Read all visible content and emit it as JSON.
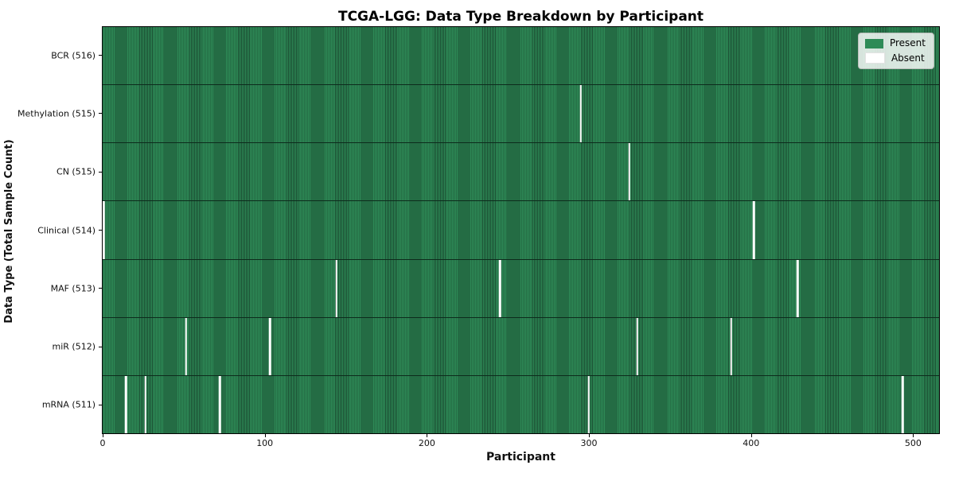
{
  "chart_data": {
    "type": "heatmap",
    "title": "TCGA-LGG: Data Type Breakdown by Participant",
    "xlabel": "Participant",
    "ylabel": "Data Type (Total Sample Count)",
    "x_ticks": [
      0,
      100,
      200,
      300,
      400,
      500
    ],
    "x_domain": [
      0,
      517
    ],
    "n_participants": 516,
    "grid": false,
    "legend_position": "upper right",
    "legend": [
      {
        "label": "Present",
        "color": "#2e8b57"
      },
      {
        "label": "Absent",
        "color": "#ffffff"
      }
    ],
    "colors": {
      "present": "#2e8b57",
      "present_edge": "#1b4d32",
      "absent": "#ffffff"
    },
    "rows": [
      {
        "label": "BCR (516)",
        "total": 516,
        "absent_participants": []
      },
      {
        "label": "Methylation (515)",
        "total": 515,
        "absent_participants": [
          295
        ]
      },
      {
        "label": "CN (515)",
        "total": 515,
        "absent_participants": [
          325
        ]
      },
      {
        "label": "Clinical (514)",
        "total": 514,
        "absent_participants": [
          0,
          402
        ]
      },
      {
        "label": "MAF (513)",
        "total": 513,
        "absent_participants": [
          144,
          245,
          429
        ]
      },
      {
        "label": "miR (512)",
        "total": 512,
        "absent_participants": [
          51,
          103,
          330,
          388
        ]
      },
      {
        "label": "mRNA (511)",
        "total": 511,
        "absent_participants": [
          14,
          26,
          72,
          300,
          494
        ]
      }
    ]
  }
}
